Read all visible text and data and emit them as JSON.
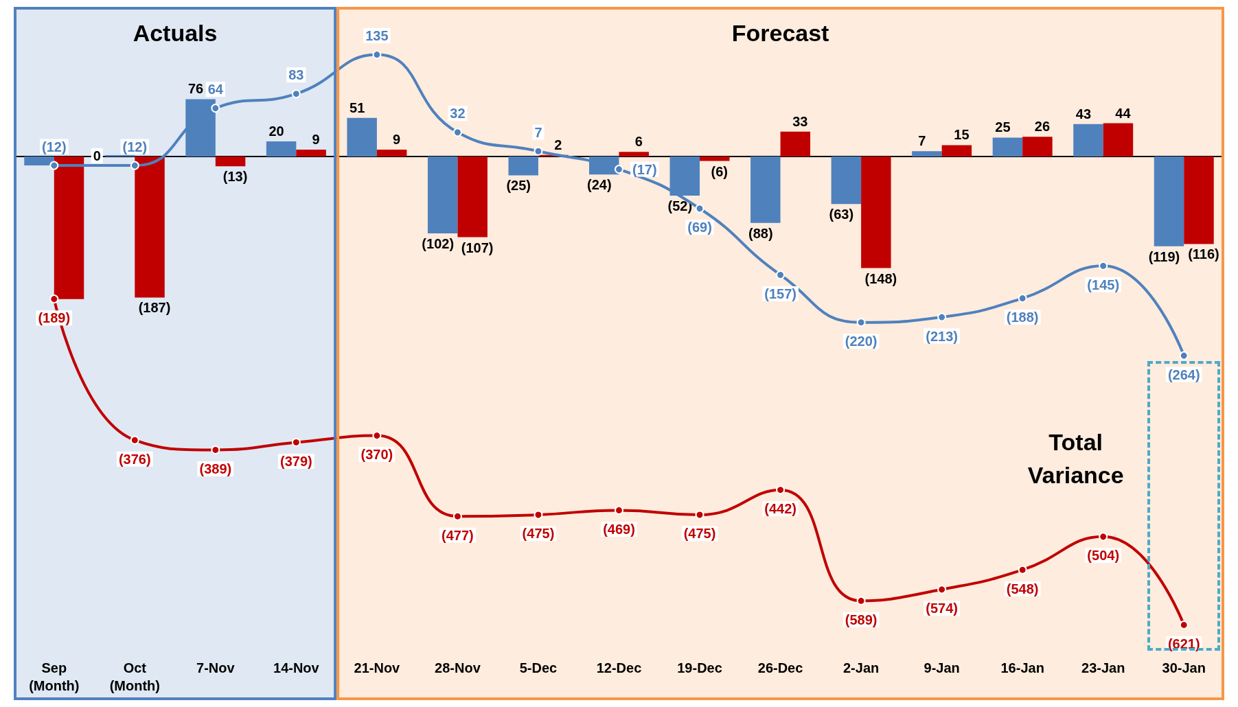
{
  "chart_data": {
    "type": "bar",
    "categories": [
      "Sep\n(Month)",
      "Oct\n(Month)",
      "7-Nov",
      "14-Nov",
      "21-Nov",
      "28-Nov",
      "5-Dec",
      "12-Dec",
      "19-Dec",
      "26-Dec",
      "2-Jan",
      "9-Jan",
      "16-Jan",
      "23-Jan",
      "30-Jan"
    ],
    "series": [
      {
        "color": "#4f81bd",
        "values": [
          -12,
          0,
          76,
          20,
          51,
          -102,
          -25,
          -24,
          -52,
          -88,
          -63,
          7,
          25,
          43,
          -119
        ],
        "value_labels": [
          null,
          "0",
          "76",
          "20",
          "51",
          "(102)",
          "(25)",
          "(24)",
          "(52)",
          "(88)",
          "(63)",
          "7",
          "25",
          "43",
          "(119)"
        ]
      },
      {
        "color": "#c00000",
        "values": [
          -189,
          -187,
          -13,
          9,
          9,
          -107,
          2,
          6,
          -6,
          33,
          -148,
          15,
          26,
          44,
          -116
        ],
        "value_labels": [
          null,
          "(187)",
          "(13)",
          "9",
          "9",
          "(107)",
          "2",
          "6",
          "(6)",
          "33",
          "(148)",
          "15",
          "26",
          "44",
          "(116)"
        ]
      },
      {
        "type": "line",
        "color": "#4f81bd",
        "values": [
          -12,
          -12,
          64,
          83,
          135,
          32,
          7,
          -17,
          -69,
          -157,
          -220,
          -213,
          -188,
          -145,
          -264
        ],
        "value_labels": [
          "(12)",
          "(12)",
          "64",
          "83",
          "135",
          "32",
          "7",
          "(17)",
          "(69)",
          "(157)",
          "(220)",
          "(213)",
          "(188)",
          "(145)",
          "(264)"
        ]
      },
      {
        "type": "line",
        "color": "#c00000",
        "values": [
          -189,
          -376,
          -389,
          -379,
          -370,
          -477,
          -475,
          -469,
          -475,
          -442,
          -589,
          -574,
          -548,
          -504,
          -621
        ],
        "value_labels": [
          "(189)",
          "(376)",
          "(389)",
          "(379)",
          "(370)",
          "(477)",
          "(475)",
          "(469)",
          "(475)",
          "(442)",
          "(589)",
          "(574)",
          "(548)",
          "(504)",
          "(621)"
        ]
      }
    ],
    "ref_lines": [
      {
        "axis": "y",
        "value": 0,
        "color": "#000000"
      }
    ],
    "bands": [
      {
        "axis": "x",
        "from": "Sep\n(Month)",
        "to": "14-Nov",
        "label": "Actuals",
        "color": "#4f81bd"
      },
      {
        "axis": "x",
        "from": "21-Nov",
        "to": "30-Jan",
        "label": "Forecast",
        "color": "#f79646"
      }
    ],
    "annotations": [
      "Total Variance"
    ],
    "marker": "circle",
    "grid": false
  }
}
